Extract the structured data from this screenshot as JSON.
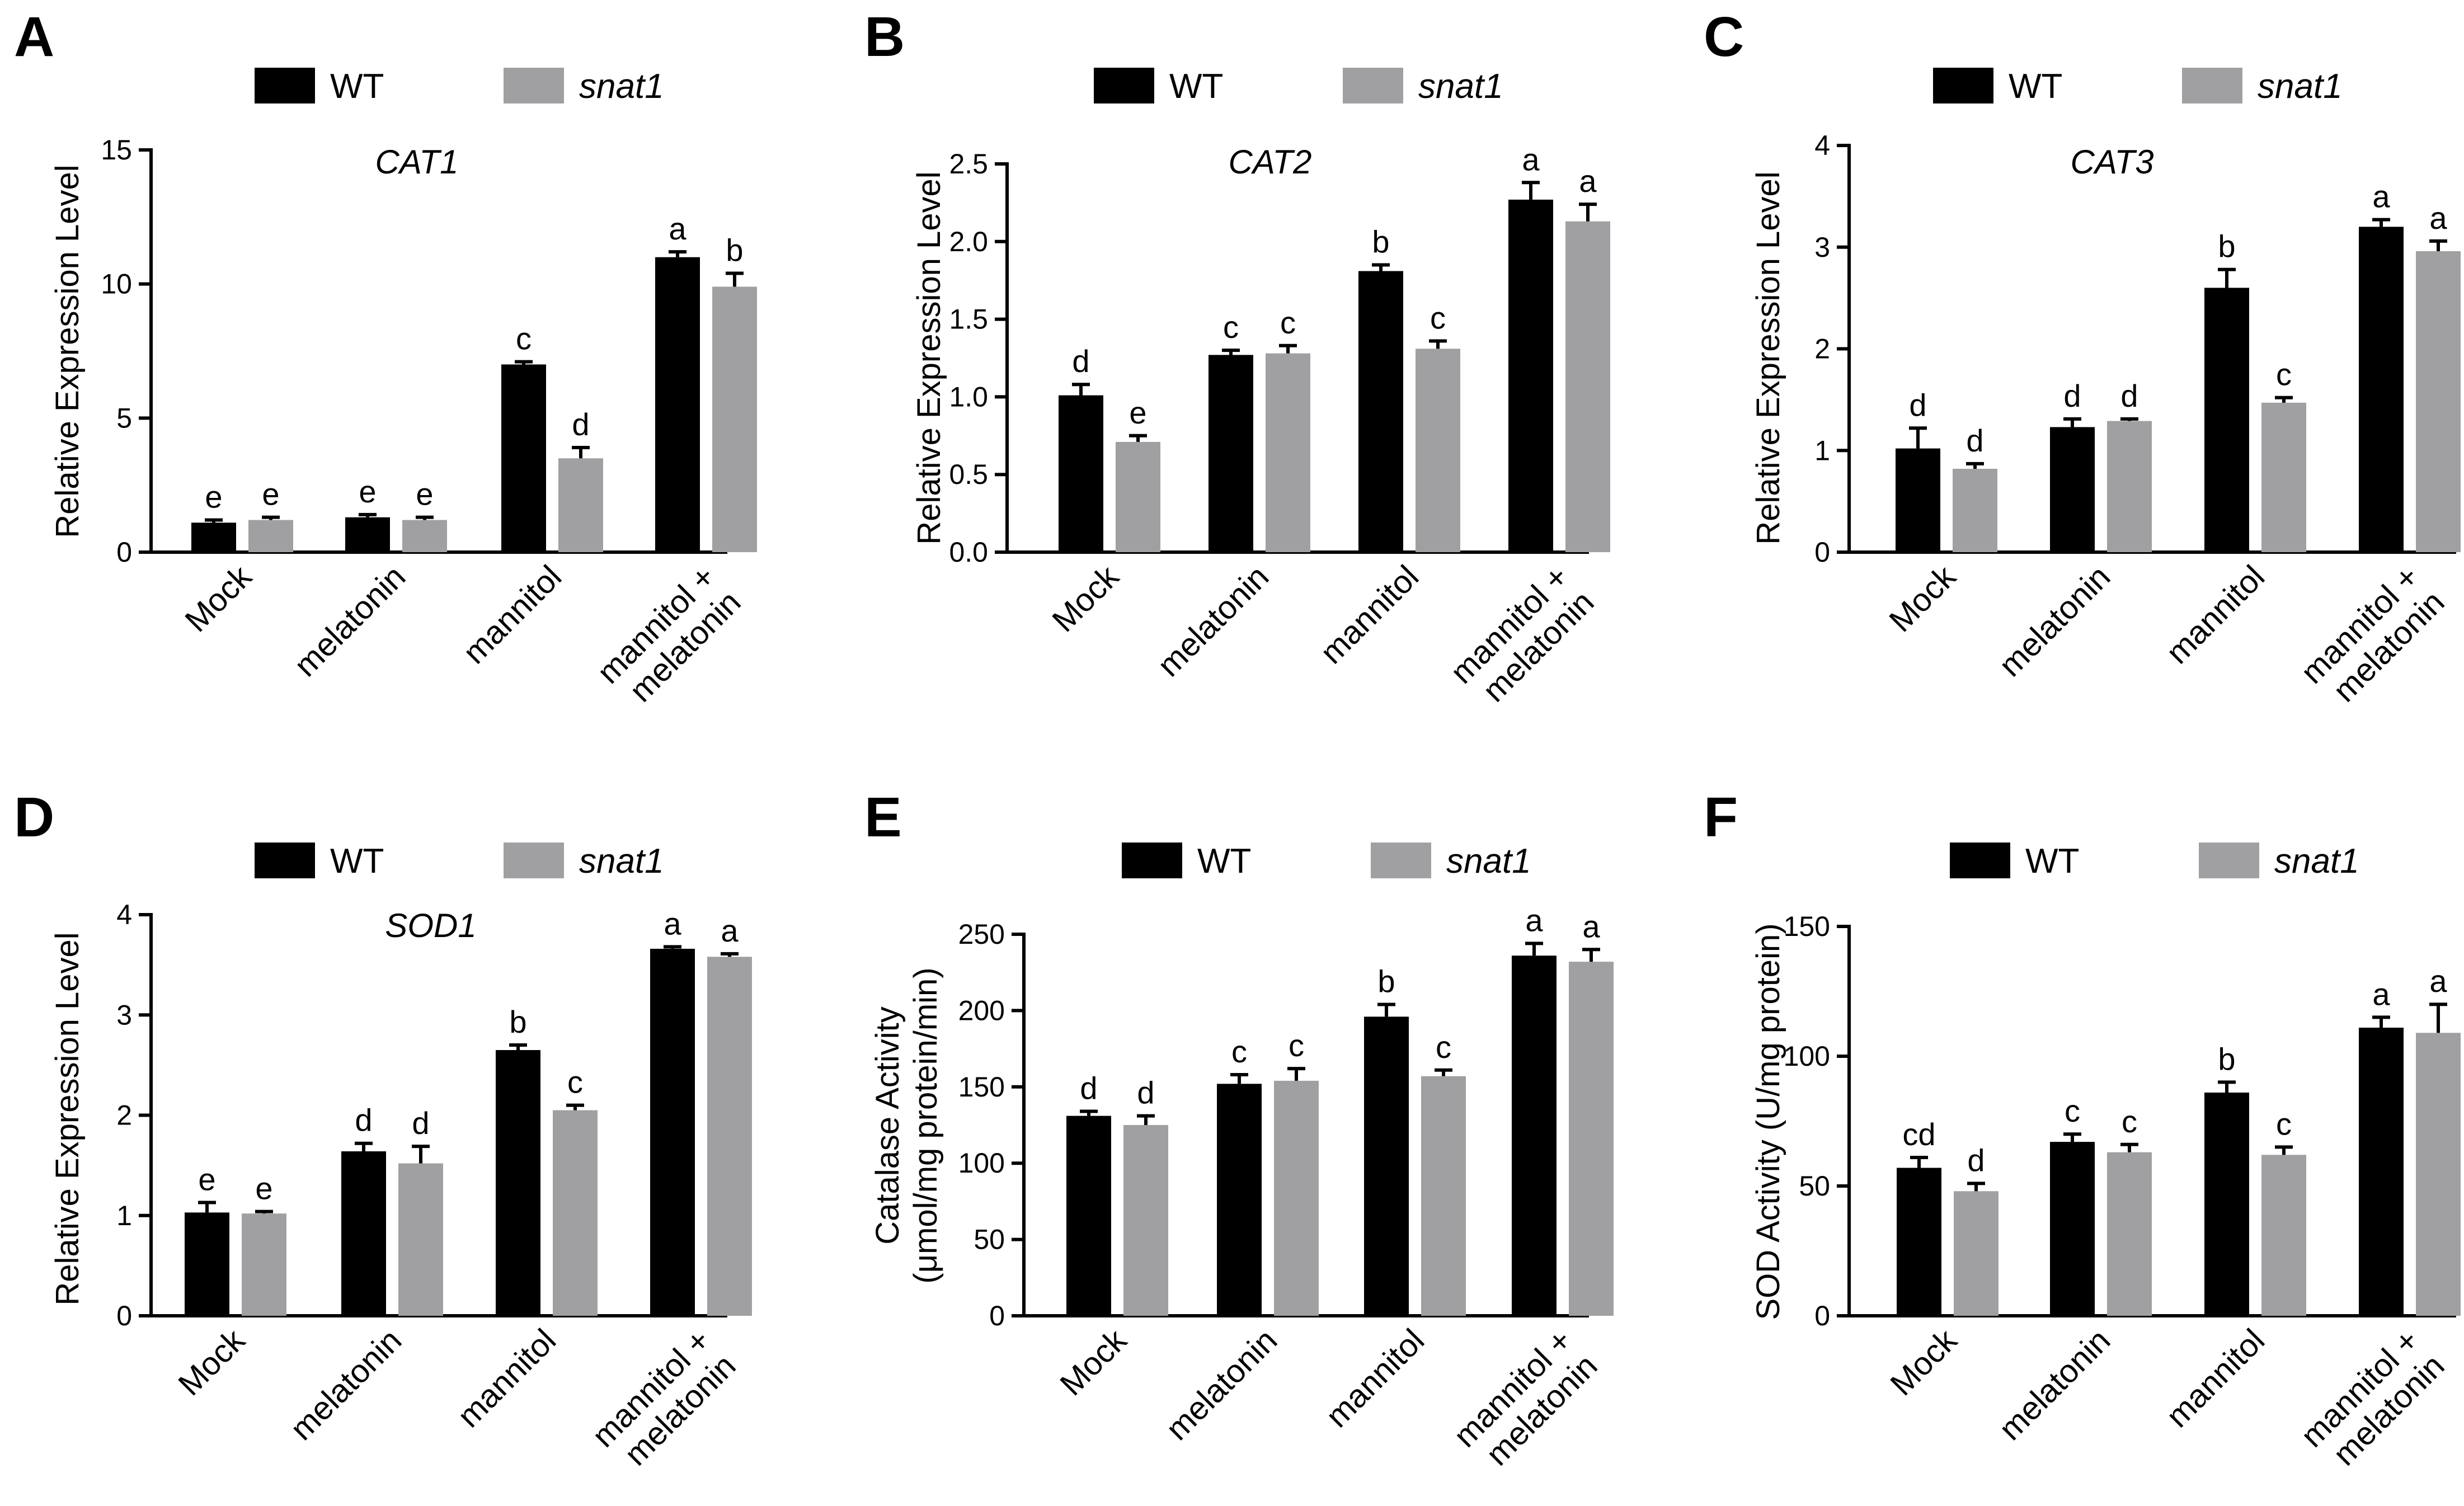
{
  "legend": {
    "wt_label": "WT",
    "mutant_label": "snat1"
  },
  "colors": {
    "wt": "#000000",
    "mutant": "#a0a0a2",
    "axis": "#000000"
  },
  "chart_data": [
    {
      "panel": "A",
      "type": "bar",
      "title": "CAT1",
      "ylabel": "Relative  Expression  Level",
      "categories": [
        "Mock",
        "melatonin",
        "mannitol",
        "mannitol +\nmelatonin"
      ],
      "ylim": [
        0,
        15
      ],
      "yticks": [
        0,
        5,
        10,
        15
      ],
      "tick_labels": [
        "0",
        "5",
        "10",
        "15"
      ],
      "series": [
        {
          "name": "WT",
          "values": [
            1.1,
            1.3,
            7.0,
            11.0
          ],
          "errors": [
            0.1,
            0.1,
            0.1,
            0.2
          ],
          "labels": [
            "e",
            "e",
            "c",
            "a"
          ]
        },
        {
          "name": "snat1",
          "values": [
            1.2,
            1.2,
            3.5,
            9.9
          ],
          "errors": [
            0.1,
            0.1,
            0.4,
            0.5
          ],
          "labels": [
            "e",
            "e",
            "d",
            "b"
          ]
        }
      ]
    },
    {
      "panel": "B",
      "type": "bar",
      "title": "CAT2",
      "ylabel": "Relative  Expression  Level",
      "categories": [
        "Mock",
        "melatonin",
        "mannitol",
        "mannitol +\nmelatonin"
      ],
      "ylim": [
        0,
        2.5
      ],
      "yticks": [
        0,
        0.5,
        1.0,
        1.5,
        2.0,
        2.5
      ],
      "tick_labels": [
        "0.0",
        "0.5",
        "1.0",
        "1.5",
        "2.0",
        "2.5"
      ],
      "series": [
        {
          "name": "WT",
          "values": [
            1.01,
            1.27,
            1.81,
            2.27
          ],
          "errors": [
            0.07,
            0.03,
            0.04,
            0.11
          ],
          "labels": [
            "d",
            "c",
            "b",
            "a"
          ]
        },
        {
          "name": "snat1",
          "values": [
            0.71,
            1.28,
            1.31,
            2.13
          ],
          "errors": [
            0.04,
            0.05,
            0.05,
            0.11
          ],
          "labels": [
            "e",
            "c",
            "c",
            "a"
          ]
        }
      ]
    },
    {
      "panel": "C",
      "type": "bar",
      "title": "CAT3",
      "ylabel": "Relative  Expression  Level",
      "categories": [
        "Mock",
        "melatonin",
        "mannitol",
        "mannitol +\nmelatonin"
      ],
      "ylim": [
        0,
        4
      ],
      "yticks": [
        0,
        1,
        2,
        3,
        4
      ],
      "tick_labels": [
        "0",
        "1",
        "2",
        "3",
        "4"
      ],
      "series": [
        {
          "name": "WT",
          "values": [
            1.02,
            1.23,
            2.6,
            3.2
          ],
          "errors": [
            0.2,
            0.08,
            0.18,
            0.07
          ],
          "labels": [
            "d",
            "d",
            "b",
            "a"
          ]
        },
        {
          "name": "snat1",
          "values": [
            0.82,
            1.29,
            1.47,
            2.96
          ],
          "errors": [
            0.05,
            0.02,
            0.05,
            0.1
          ],
          "labels": [
            "d",
            "d",
            "c",
            "a"
          ]
        }
      ]
    },
    {
      "panel": "D",
      "type": "bar",
      "title": "SOD1",
      "ylabel": "Relative  Expression  Level",
      "categories": [
        "Mock",
        "melatonin",
        "mannitol",
        "mannitol +\nmelatonin"
      ],
      "ylim": [
        0,
        4
      ],
      "yticks": [
        0,
        1,
        2,
        3,
        4
      ],
      "tick_labels": [
        "0",
        "1",
        "2",
        "3",
        "4"
      ],
      "series": [
        {
          "name": "WT",
          "values": [
            1.03,
            1.64,
            2.65,
            3.66
          ],
          "errors": [
            0.1,
            0.08,
            0.05,
            0.02
          ],
          "labels": [
            "e",
            "d",
            "b",
            "a"
          ]
        },
        {
          "name": "snat1",
          "values": [
            1.02,
            1.52,
            2.05,
            3.58
          ],
          "errors": [
            0.02,
            0.17,
            0.05,
            0.03
          ],
          "labels": [
            "e",
            "d",
            "c",
            "a"
          ]
        }
      ]
    },
    {
      "panel": "E",
      "type": "bar",
      "title": "",
      "ylabel": "Catalase Activity\n(μmol/mg protein/min)",
      "categories": [
        "Mock",
        "melatonin",
        "mannitol",
        "mannitol +\nmelatonin"
      ],
      "ylim": [
        0,
        250
      ],
      "yticks": [
        0,
        50,
        100,
        150,
        200,
        250
      ],
      "tick_labels": [
        "0",
        "50",
        "100",
        "150",
        "200",
        "250"
      ],
      "series": [
        {
          "name": "WT",
          "values": [
            131,
            152,
            196,
            236
          ],
          "errors": [
            3,
            6,
            8,
            8
          ],
          "labels": [
            "d",
            "c",
            "b",
            "a"
          ]
        },
        {
          "name": "snat1",
          "values": [
            125,
            154,
            157,
            232
          ],
          "errors": [
            6,
            8,
            4,
            8
          ],
          "labels": [
            "d",
            "c",
            "c",
            "a"
          ]
        }
      ]
    },
    {
      "panel": "F",
      "type": "bar",
      "title": "",
      "ylabel": "SOD Activity (U/mg protein)",
      "categories": [
        "Mock",
        "melatonin",
        "mannitol",
        "mannitol +\nmelatonin"
      ],
      "ylim": [
        0,
        150
      ],
      "yticks": [
        0,
        50,
        100,
        150
      ],
      "tick_labels": [
        "0",
        "50",
        "100",
        "150"
      ],
      "series": [
        {
          "name": "WT",
          "values": [
            57,
            67,
            86,
            111
          ],
          "errors": [
            4,
            3,
            4,
            4
          ],
          "labels": [
            "cd",
            "c",
            "b",
            "a"
          ]
        },
        {
          "name": "snat1",
          "values": [
            48,
            63,
            62,
            109
          ],
          "errors": [
            3,
            3,
            3,
            11
          ],
          "labels": [
            "d",
            "c",
            "c",
            "a"
          ]
        }
      ]
    }
  ]
}
